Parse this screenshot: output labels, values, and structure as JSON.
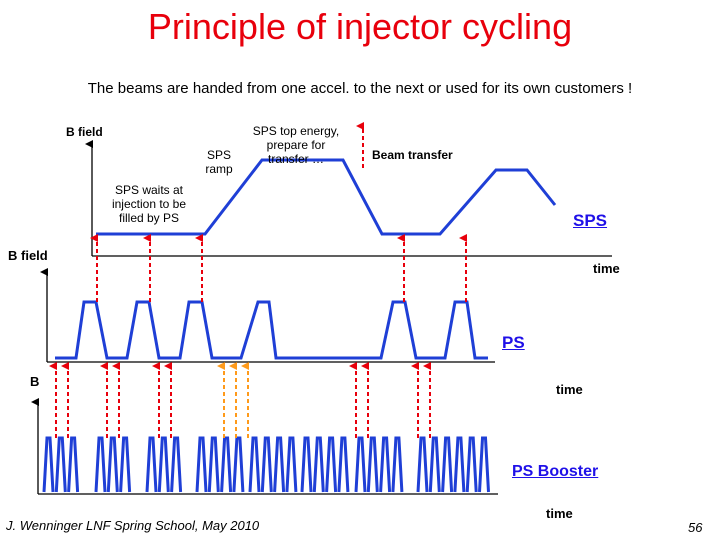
{
  "title": "Principle of injector cycling",
  "subtitle": "The beams are handed from one accel. to the next or used for its own customers !",
  "labels": {
    "sps_bfield": "B field",
    "sps_ramp": "SPS\nramp",
    "sps_top": "SPS top energy,\nprepare for\ntransfer …",
    "beam_transfer": "Beam transfer",
    "sps_waits": "SPS waits at\ninjection to be\nfilled by PS",
    "sps_name": "SPS",
    "ps_bfield": "B field",
    "time_sps": "time",
    "ps_name": "PS",
    "booster_b": "B",
    "time_ps": "time",
    "booster_name": "PS Booster",
    "time_booster": "time"
  },
  "footer": "J. Wenninger LNF Spring School, May 2010",
  "page_number": "56",
  "colors": {
    "title": "#e8000c",
    "waveform": "#1f3fd6",
    "transfer_arrow": "#e8000c",
    "orange_arrow": "#ff9a1a",
    "machine_name": "#1f10e8"
  }
}
